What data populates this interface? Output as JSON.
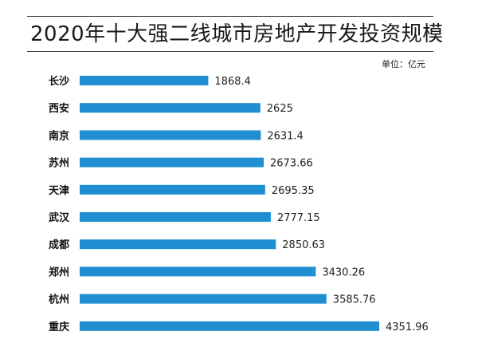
{
  "title": "2020年十大强二线城市房地产开发投资规模",
  "unit_label": "单位：亿元",
  "chart_data": {
    "type": "bar",
    "orientation": "horizontal",
    "title": "2020年十大强二线城市房地产开发投资规模",
    "unit": "单位：亿元",
    "categories": [
      "长沙",
      "西安",
      "南京",
      "苏州",
      "天津",
      "武汉",
      "成都",
      "郑州",
      "杭州",
      "重庆"
    ],
    "values": [
      1868.4,
      2625,
      2631.4,
      2673.66,
      2695.35,
      2777.15,
      2850.63,
      3430.26,
      3585.76,
      4351.96
    ],
    "value_labels": [
      "1868.4",
      "2625",
      "2631.4",
      "2673.66",
      "2695.35",
      "2777.15",
      "2850.63",
      "3430.26",
      "3585.76",
      "4351.96"
    ],
    "xlim": [
      0,
      4351.96
    ],
    "bar_color": "#1f8fd1",
    "grid": false,
    "legend": "none"
  }
}
